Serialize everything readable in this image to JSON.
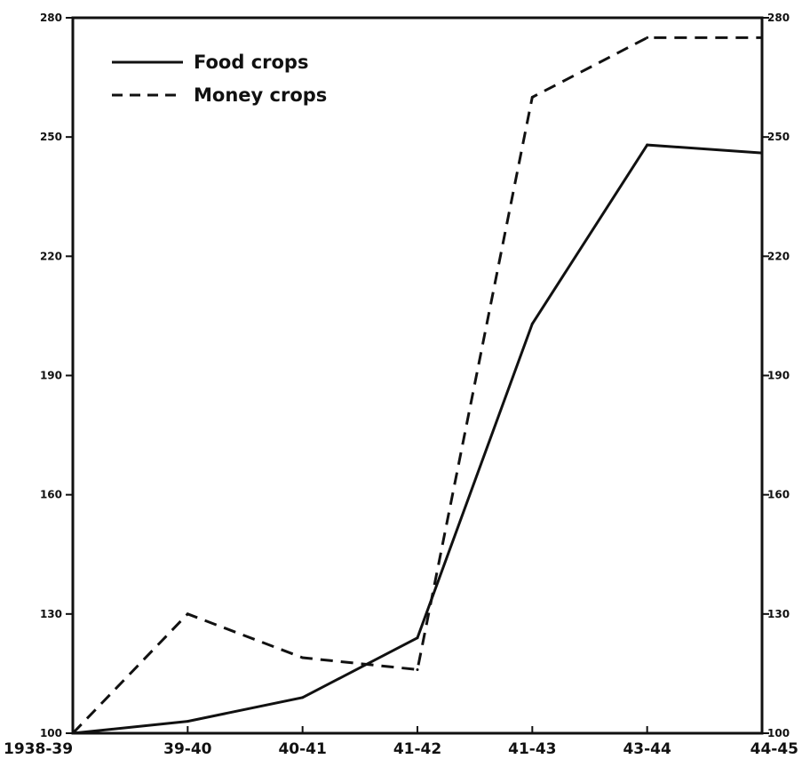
{
  "chart_data": {
    "type": "line",
    "title": "",
    "xlabel": "",
    "ylabel": "",
    "categories": [
      "1938-39",
      "39-40",
      "40-41",
      "41-42",
      "41-43",
      "43-44",
      "44-45"
    ],
    "ylim": [
      100,
      280
    ],
    "left_ticks": [
      "100",
      "130",
      "160",
      "190",
      "220",
      "250",
      "280"
    ],
    "right_ticks": [
      "100",
      "130",
      "160",
      "190",
      "220",
      "250",
      "280"
    ],
    "tick_values": [
      100,
      130,
      160,
      190,
      220,
      250,
      280
    ],
    "grid": false,
    "legend_position": "top-left",
    "series": [
      {
        "name": "Food crops",
        "style": "solid",
        "values": [
          100,
          103,
          109,
          124,
          203,
          248,
          246
        ]
      },
      {
        "name": "Money crops",
        "style": "dashed",
        "values": [
          100,
          130,
          119,
          116,
          260,
          275,
          275
        ]
      }
    ]
  },
  "colors": {
    "line": "#111111",
    "background": "#ffffff"
  }
}
